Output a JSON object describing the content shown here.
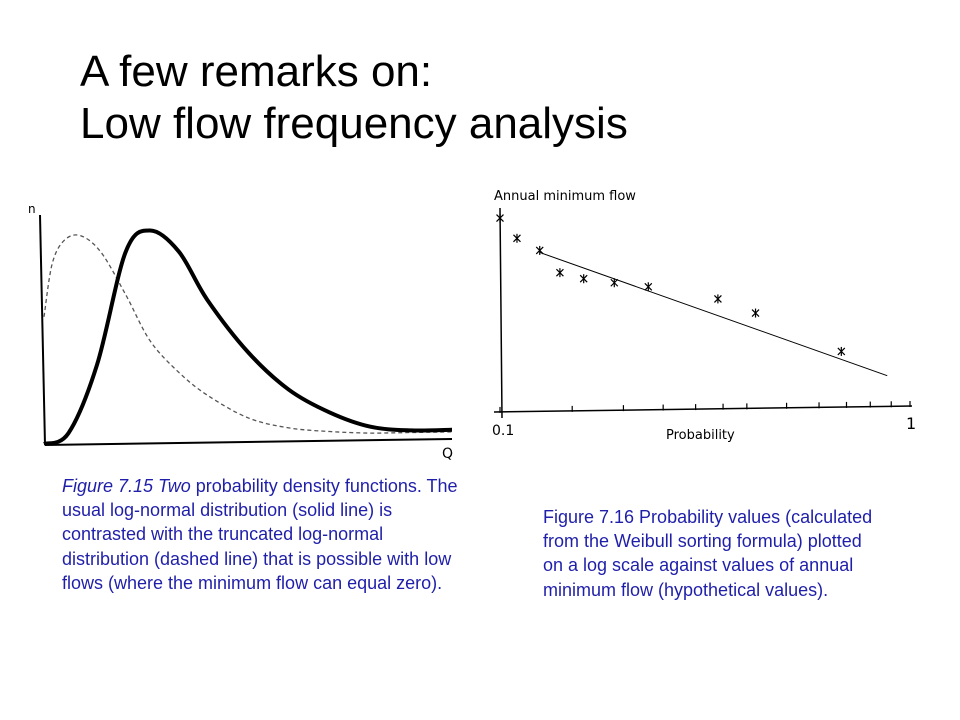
{
  "slide": {
    "title_line1": "A few remarks on:",
    "title_line2": "Low flow frequency analysis"
  },
  "figure_left": {
    "caption_prefix": "Figure 7.15 Two",
    "caption_rest": " probability density functions. The usual log-normal distribution (solid line) is contrasted with the truncated log-normal distribution (dashed line) that is possible with low flows (where the minimum flow can equal zero)."
  },
  "figure_right": {
    "caption": "Figure 7.16 Probability values (calculated from the Weibull sorting formula) plotted on a log scale against values of annual minimum flow (hypothetical values)."
  },
  "chart_data": [
    {
      "type": "line",
      "ylabel": "n",
      "xlabel": "Q",
      "grid": false,
      "series": [
        {
          "style": "solid",
          "x": [
            0.0,
            0.06,
            0.13,
            0.2,
            0.26,
            0.33,
            0.4,
            0.5,
            0.6,
            0.7,
            0.8,
            0.9,
            1.0
          ],
          "y": [
            0.0,
            0.05,
            0.37,
            0.9,
            1.0,
            0.9,
            0.67,
            0.42,
            0.24,
            0.13,
            0.06,
            0.04,
            0.04
          ]
        },
        {
          "style": "dashed",
          "x": [
            0.0,
            0.02,
            0.05,
            0.09,
            0.14,
            0.2,
            0.26,
            0.33,
            0.4,
            0.5,
            0.6,
            0.7,
            0.8,
            0.9,
            1.0
          ],
          "y": [
            0.6,
            0.85,
            0.96,
            0.98,
            0.9,
            0.7,
            0.48,
            0.33,
            0.22,
            0.11,
            0.06,
            0.04,
            0.03,
            0.03,
            0.03
          ]
        }
      ]
    },
    {
      "type": "scatter",
      "ylabel": "Annual minimum flow",
      "xlabel": "Probability",
      "x_scale": "log",
      "x_tick_labels": [
        "0.1",
        "1"
      ],
      "grid": false,
      "points": [
        {
          "x": 0.1,
          "y": 0.95
        },
        {
          "x": 0.11,
          "y": 0.85
        },
        {
          "x": 0.125,
          "y": 0.79
        },
        {
          "x": 0.14,
          "y": 0.68
        },
        {
          "x": 0.16,
          "y": 0.65
        },
        {
          "x": 0.19,
          "y": 0.63
        },
        {
          "x": 0.23,
          "y": 0.61
        },
        {
          "x": 0.34,
          "y": 0.55
        },
        {
          "x": 0.42,
          "y": 0.48
        },
        {
          "x": 0.68,
          "y": 0.29
        }
      ],
      "fit_line": {
        "x": [
          0.125,
          0.88
        ],
        "y": [
          0.78,
          0.17
        ]
      }
    }
  ]
}
